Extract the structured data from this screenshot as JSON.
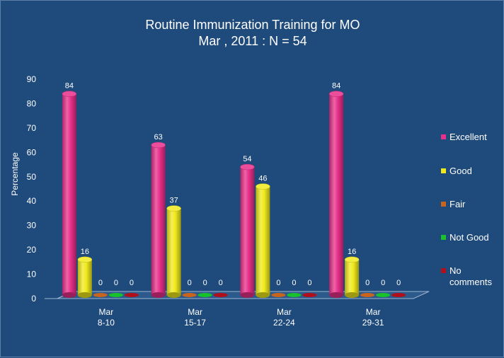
{
  "chart_data": {
    "type": "bar",
    "title": "Routine Immunization Training for MO",
    "subtitle": "Mar , 2011 : N = 54",
    "ylabel": "Percentage",
    "xlabel": "",
    "ylim": [
      0,
      90
    ],
    "yticks": [
      0,
      10,
      20,
      30,
      40,
      50,
      60,
      70,
      80,
      90
    ],
    "categories": [
      {
        "line1": "Mar",
        "line2": "8-10"
      },
      {
        "line1": "Mar",
        "line2": "15-17"
      },
      {
        "line1": "Mar",
        "line2": "22-24"
      },
      {
        "line1": "Mar",
        "line2": "29-31"
      }
    ],
    "series": [
      {
        "name": "Excellent",
        "color": "#e8308a",
        "values": [
          84,
          63,
          54,
          84
        ]
      },
      {
        "name": "Good",
        "color": "#f0ea1c",
        "values": [
          16,
          37,
          46,
          16
        ]
      },
      {
        "name": "Fair",
        "color": "#c8641e",
        "values": [
          0,
          0,
          0,
          0
        ]
      },
      {
        "name": "Not Good",
        "color": "#18c22a",
        "values": [
          0,
          0,
          0,
          0
        ]
      },
      {
        "name": "No\ncomments",
        "color": "#b0101c",
        "values": [
          0,
          0,
          0,
          0
        ]
      }
    ],
    "legend": "right",
    "grid": false
  }
}
